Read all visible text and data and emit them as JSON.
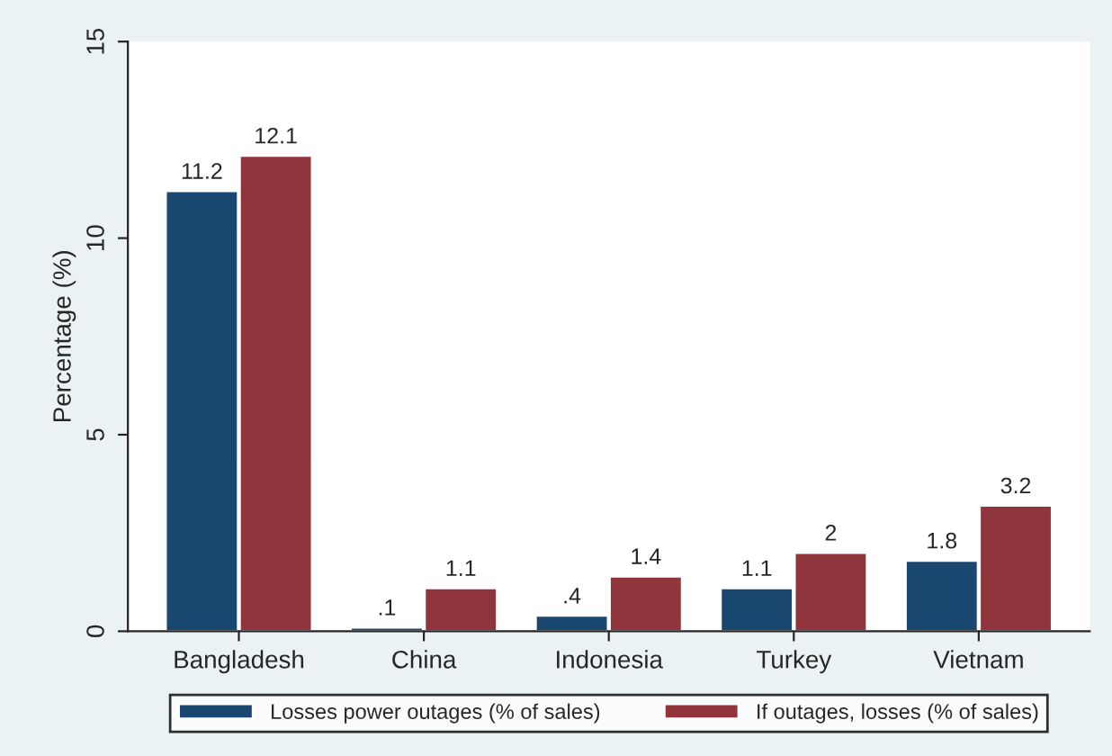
{
  "chart_data": {
    "type": "bar",
    "ylabel": "Percentage (%)",
    "categories": [
      "Bangladesh",
      "China",
      "Indonesia",
      "Turkey",
      "Vietnam"
    ],
    "series": [
      {
        "name": "Losses power outages (% of sales)",
        "color": "#1a476f",
        "values": [
          11.2,
          0.1,
          0.4,
          1.1,
          1.8
        ],
        "value_labels": [
          "11.2",
          ".1",
          ".4",
          "1.1",
          "1.8"
        ]
      },
      {
        "name": "If outages, losses (% of sales)",
        "color": "#90353b",
        "values": [
          12.1,
          1.1,
          1.4,
          2,
          3.2
        ],
        "value_labels": [
          "12.1",
          "1.1",
          "1.4",
          "2",
          "3.2"
        ]
      }
    ],
    "ylim": [
      0,
      15
    ],
    "yticks": [
      0,
      5,
      10,
      15
    ],
    "grid": false,
    "legend": "bottom"
  }
}
